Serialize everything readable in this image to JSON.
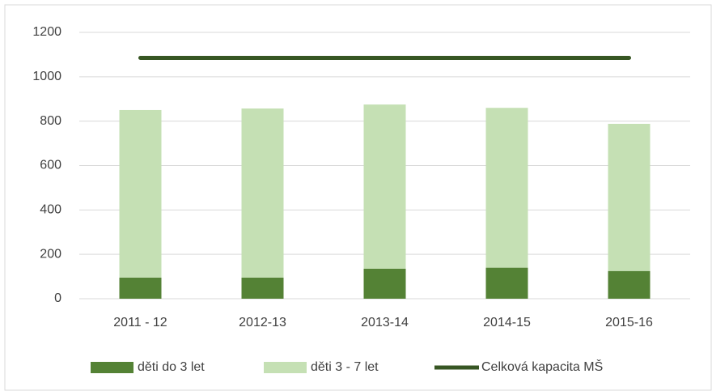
{
  "chart_data": {
    "type": "bar",
    "stacked": true,
    "categories": [
      "2011 - 12",
      "2012-13",
      "2013-14",
      "2014-15",
      "2015-16"
    ],
    "series": [
      {
        "name": "děti do 3 let",
        "type": "bar",
        "color": "#548235",
        "values": [
          95,
          95,
          135,
          140,
          125
        ]
      },
      {
        "name": "děti 3 - 7 let",
        "type": "bar",
        "color": "#c5e0b4",
        "values": [
          755,
          762,
          740,
          720,
          663
        ]
      },
      {
        "name": "Celková kapacita MŠ",
        "type": "line",
        "color": "#375623",
        "values": [
          1085,
          1085,
          1085,
          1085,
          1085
        ]
      }
    ],
    "ylim": [
      0,
      1200
    ],
    "yticks": [
      0,
      200,
      400,
      600,
      800,
      1000,
      1200
    ],
    "grid": true,
    "legend": "bottom"
  }
}
